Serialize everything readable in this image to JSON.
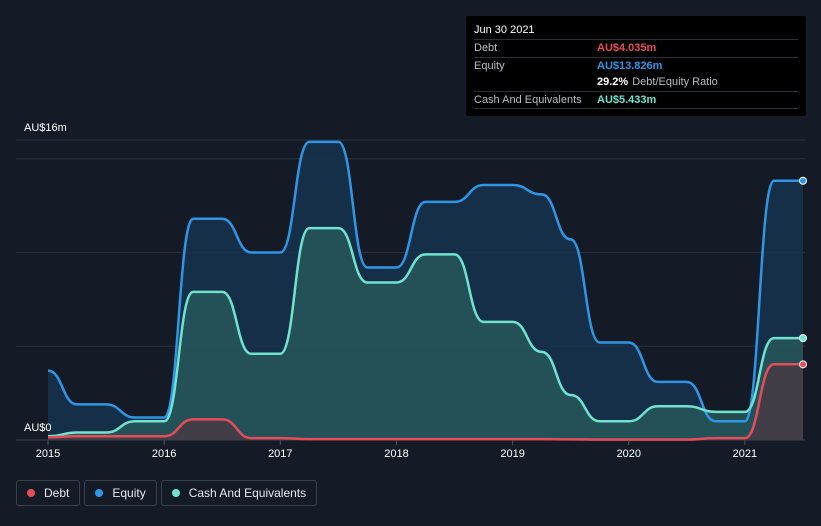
{
  "tooltip": {
    "date": "Jun 30 2021",
    "debt_label": "Debt",
    "debt_value": "AU$4.035m",
    "equity_label": "Equity",
    "equity_value": "AU$13.826m",
    "ratio_value": "29.2%",
    "ratio_label": "Debt/Equity Ratio",
    "cash_label": "Cash And Equivalents",
    "cash_value": "AU$5.433m"
  },
  "legend": {
    "debt": "Debt",
    "equity": "Equity",
    "cash": "Cash And Equivalents"
  },
  "colors": {
    "debt": "#e64d58",
    "equity": "#2f95e5",
    "cash": "#6fe3cf",
    "background": "#151b26"
  },
  "chart_data": {
    "type": "area",
    "y_top_label": "AU$16m",
    "y_bottom_label": "AU$0",
    "ylim": [
      0,
      16
    ],
    "xlim": [
      2015.0,
      2021.5
    ],
    "x_ticks": [
      {
        "value": 2015,
        "label": "2015"
      },
      {
        "value": 2016,
        "label": "2016"
      },
      {
        "value": 2017,
        "label": "2017"
      },
      {
        "value": 2018,
        "label": "2018"
      },
      {
        "value": 2019,
        "label": "2019"
      },
      {
        "value": 2020,
        "label": "2020"
      },
      {
        "value": 2021,
        "label": "2021"
      }
    ],
    "series": [
      {
        "name": "Equity",
        "key": "equity",
        "points": [
          [
            2015.0,
            3.7
          ],
          [
            2015.25,
            1.9
          ],
          [
            2015.5,
            1.9
          ],
          [
            2015.75,
            1.2
          ],
          [
            2016.0,
            1.2
          ],
          [
            2016.25,
            11.8
          ],
          [
            2016.5,
            11.8
          ],
          [
            2016.75,
            10.0
          ],
          [
            2017.0,
            10.0
          ],
          [
            2017.25,
            15.9
          ],
          [
            2017.5,
            15.9
          ],
          [
            2017.75,
            9.2
          ],
          [
            2018.0,
            9.2
          ],
          [
            2018.25,
            12.7
          ],
          [
            2018.5,
            12.7
          ],
          [
            2018.75,
            13.6
          ],
          [
            2019.0,
            13.6
          ],
          [
            2019.25,
            13.1
          ],
          [
            2019.5,
            10.7
          ],
          [
            2019.75,
            5.2
          ],
          [
            2020.0,
            5.2
          ],
          [
            2020.25,
            3.1
          ],
          [
            2020.5,
            3.1
          ],
          [
            2020.75,
            1.0
          ],
          [
            2021.0,
            1.0
          ],
          [
            2021.25,
            13.826
          ],
          [
            2021.5,
            13.826
          ]
        ]
      },
      {
        "name": "Cash And Equivalents",
        "key": "cash",
        "points": [
          [
            2015.0,
            0.2
          ],
          [
            2015.25,
            0.4
          ],
          [
            2015.5,
            0.4
          ],
          [
            2015.75,
            1.0
          ],
          [
            2016.0,
            1.0
          ],
          [
            2016.25,
            7.9
          ],
          [
            2016.5,
            7.9
          ],
          [
            2016.75,
            4.6
          ],
          [
            2017.0,
            4.6
          ],
          [
            2017.25,
            11.3
          ],
          [
            2017.5,
            11.3
          ],
          [
            2017.75,
            8.4
          ],
          [
            2018.0,
            8.4
          ],
          [
            2018.25,
            9.9
          ],
          [
            2018.5,
            9.9
          ],
          [
            2018.75,
            6.3
          ],
          [
            2019.0,
            6.3
          ],
          [
            2019.25,
            4.7
          ],
          [
            2019.5,
            2.4
          ],
          [
            2019.75,
            1.0
          ],
          [
            2020.0,
            1.0
          ],
          [
            2020.25,
            1.8
          ],
          [
            2020.5,
            1.8
          ],
          [
            2020.75,
            1.5
          ],
          [
            2021.0,
            1.5
          ],
          [
            2021.25,
            5.433
          ],
          [
            2021.5,
            5.433
          ]
        ]
      },
      {
        "name": "Debt",
        "key": "debt",
        "points": [
          [
            2015.0,
            0.15
          ],
          [
            2015.25,
            0.2
          ],
          [
            2015.5,
            0.2
          ],
          [
            2015.75,
            0.2
          ],
          [
            2016.0,
            0.2
          ],
          [
            2016.25,
            1.1
          ],
          [
            2016.5,
            1.1
          ],
          [
            2016.75,
            0.1
          ],
          [
            2017.0,
            0.1
          ],
          [
            2017.25,
            0.05
          ],
          [
            2017.5,
            0.05
          ],
          [
            2017.75,
            0.05
          ],
          [
            2018.0,
            0.05
          ],
          [
            2018.25,
            0.05
          ],
          [
            2018.5,
            0.05
          ],
          [
            2018.75,
            0.05
          ],
          [
            2019.0,
            0.05
          ],
          [
            2019.25,
            0.05
          ],
          [
            2019.5,
            0.03
          ],
          [
            2019.75,
            0.02
          ],
          [
            2020.0,
            0.02
          ],
          [
            2020.25,
            0.02
          ],
          [
            2020.5,
            0.02
          ],
          [
            2020.75,
            0.1
          ],
          [
            2021.0,
            0.1
          ],
          [
            2021.25,
            4.035
          ],
          [
            2021.5,
            4.035
          ]
        ]
      }
    ]
  }
}
